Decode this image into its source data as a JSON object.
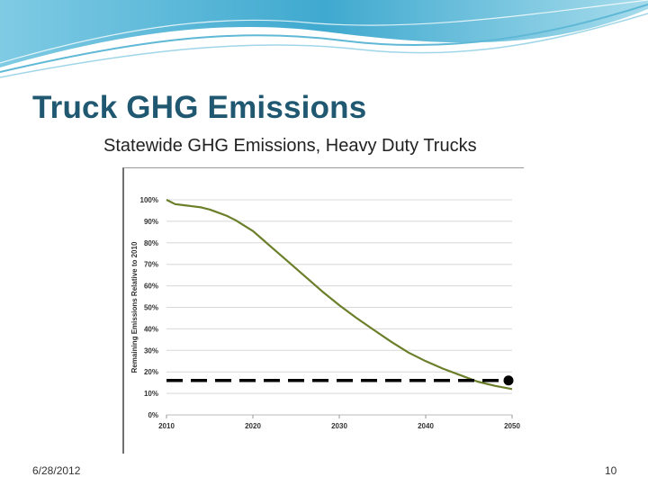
{
  "slide": {
    "title": "Truck GHG Emissions",
    "subtitle": "Statewide GHG Emissions, Heavy Duty Trucks",
    "date": "6/28/2012",
    "page_number": "10"
  },
  "colors": {
    "title": "#1f5870",
    "line": "#6b7f2a",
    "grid": "#d8d8d8",
    "target": "#000000",
    "wave": "#5fb8d6"
  },
  "chart_data": {
    "type": "line",
    "title": "",
    "xlabel": "",
    "ylabel": "Remaining Emissions Relative to 2010",
    "xlim": [
      2010,
      2050
    ],
    "ylim": [
      0,
      100
    ],
    "x_ticks": [
      "2010",
      "2020",
      "2030",
      "2040",
      "2050"
    ],
    "y_ticks": [
      "0%",
      "10%",
      "20%",
      "30%",
      "40%",
      "50%",
      "60%",
      "70%",
      "80%",
      "90%",
      "100%"
    ],
    "grid": true,
    "series": [
      {
        "x": [
          2010,
          2011,
          2012,
          2013,
          2014,
          2015,
          2016,
          2017,
          2018,
          2019,
          2020,
          2021,
          2022,
          2024,
          2026,
          2028,
          2030,
          2032,
          2034,
          2036,
          2038,
          2040,
          2042,
          2044,
          2046,
          2048,
          2050
        ],
        "values": [
          100,
          98,
          97.5,
          97,
          96.5,
          95.5,
          94,
          92.5,
          90.5,
          88,
          85.5,
          82,
          78.5,
          71.5,
          64.5,
          57.5,
          51,
          45,
          39.5,
          34,
          29,
          25,
          21.5,
          18.5,
          15.5,
          13.5,
          12
        ]
      }
    ],
    "target_line": {
      "y": 16,
      "x_start": 2010,
      "x_end": 2050
    }
  }
}
